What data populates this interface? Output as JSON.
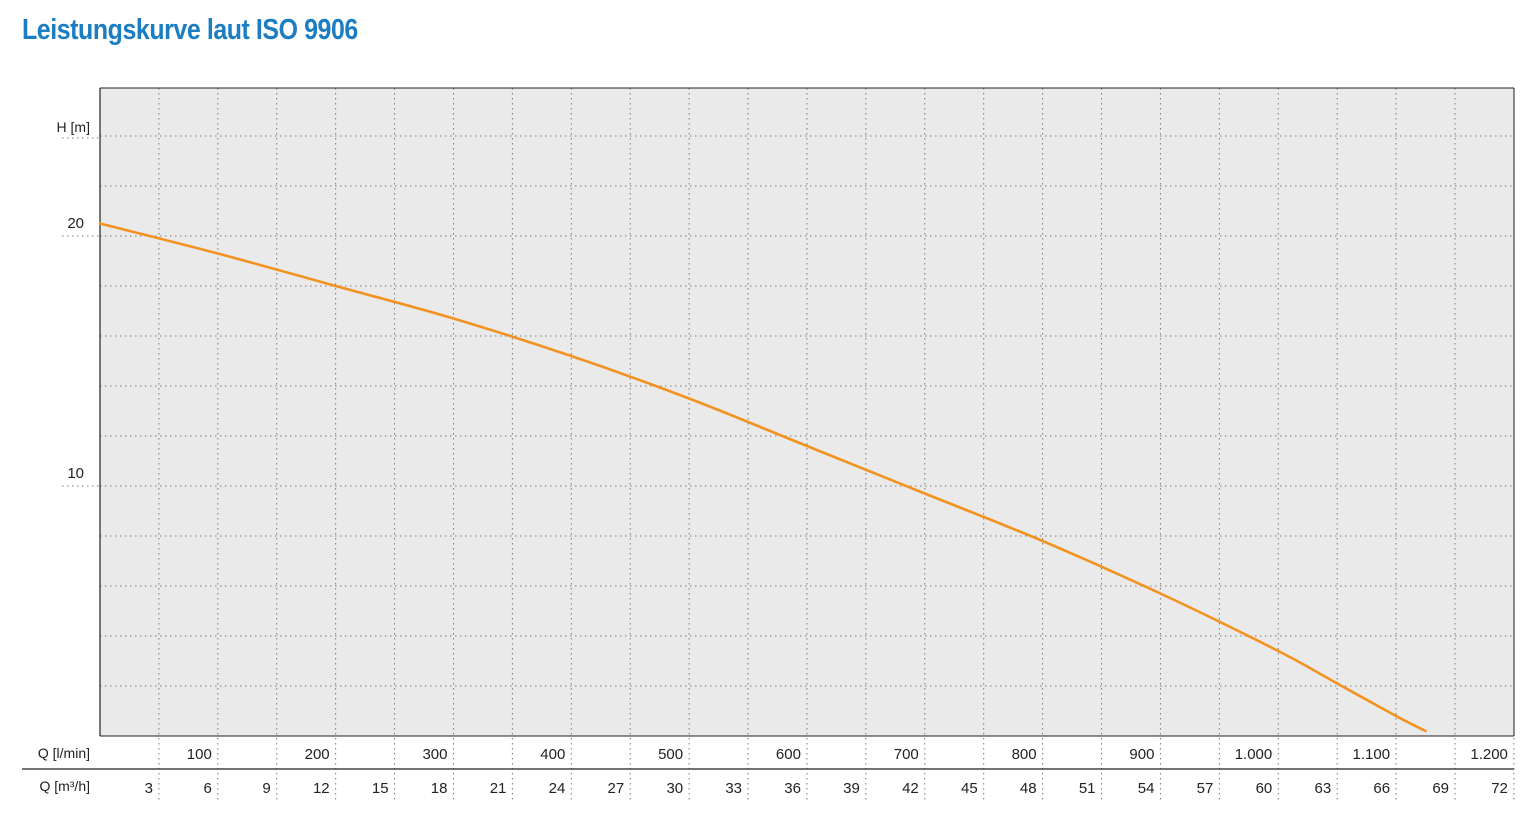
{
  "title": "Leistungskurve laut ISO 9906",
  "colors": {
    "title": "#1b7dc2",
    "curve": "#f29321",
    "plot_background": "#eaeaea",
    "grid": "#7a7a7a"
  },
  "chart_data": {
    "type": "line",
    "title": "Leistungskurve laut ISO 9906",
    "ylabel": "H [m]",
    "xlabel": "Q [l/min]",
    "xlabel_secondary": "Q [m³/h]",
    "xlim": [
      0,
      1200
    ],
    "ylim": [
      0,
      26
    ],
    "grid": true,
    "y_ticks": [
      {
        "value": 20,
        "label": "20"
      },
      {
        "value": 10,
        "label": "10"
      }
    ],
    "x_ticks_lmin": [
      {
        "value": 100,
        "label": "100"
      },
      {
        "value": 200,
        "label": "200"
      },
      {
        "value": 300,
        "label": "300"
      },
      {
        "value": 400,
        "label": "400"
      },
      {
        "value": 500,
        "label": "500"
      },
      {
        "value": 600,
        "label": "600"
      },
      {
        "value": 700,
        "label": "700"
      },
      {
        "value": 800,
        "label": "800"
      },
      {
        "value": 900,
        "label": "900"
      },
      {
        "value": 1000,
        "label": "1.000"
      },
      {
        "value": 1100,
        "label": "1.100"
      },
      {
        "value": 1200,
        "label": "1.200"
      }
    ],
    "x_ticks_m3h": [
      "3",
      "6",
      "9",
      "12",
      "15",
      "18",
      "21",
      "24",
      "27",
      "30",
      "33",
      "36",
      "39",
      "42",
      "45",
      "48",
      "51",
      "54",
      "57",
      "60",
      "63",
      "66",
      "69",
      "72"
    ],
    "series": [
      {
        "x": [
          0,
          100,
          200,
          300,
          400,
          500,
          600,
          700,
          800,
          900,
          1000,
          1050,
          1100,
          1125
        ],
        "y": [
          20.5,
          19.3,
          18.0,
          16.7,
          15.2,
          13.5,
          11.6,
          9.7,
          7.8,
          5.7,
          3.4,
          2.1,
          0.8,
          0.2
        ]
      }
    ]
  }
}
